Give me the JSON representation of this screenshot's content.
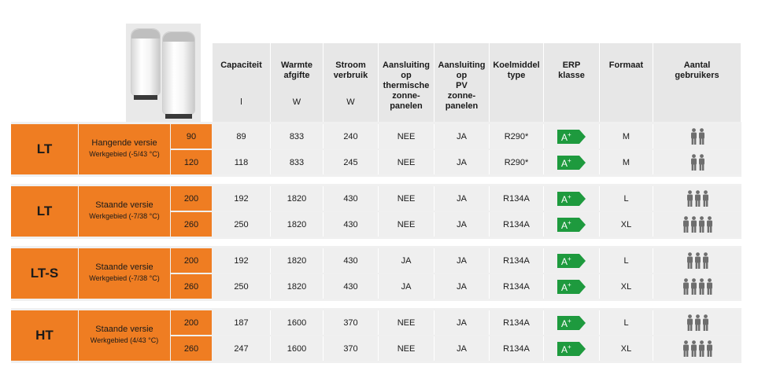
{
  "headers": [
    {
      "label": "Capaciteit",
      "unit": "l"
    },
    {
      "label": "Warmte afgifte",
      "unit": "W"
    },
    {
      "label": "Stroom verbruik",
      "unit": "W"
    },
    {
      "label": "Aansluiting op thermische zonne-panelen",
      "unit": ""
    },
    {
      "label": "Aansluiting op PV zonne-panelen",
      "unit": ""
    },
    {
      "label": "Koelmiddel type",
      "unit": ""
    },
    {
      "label": "ERP klasse",
      "unit": ""
    },
    {
      "label": "Formaat",
      "unit": ""
    },
    {
      "label": "Aantal gebruikers",
      "unit": ""
    }
  ],
  "header_lines": {
    "h0": [
      "Capaciteit"
    ],
    "h1": [
      "Warmte",
      "afgifte"
    ],
    "h2": [
      "Stroom",
      "verbruik"
    ],
    "h3": [
      "Aansluiting",
      "op",
      "thermische",
      "zonne-",
      "panelen"
    ],
    "h4": [
      "Aansluiting",
      "op",
      "PV",
      "zonne-",
      "panelen"
    ],
    "h5": [
      "Koelmiddel",
      "type"
    ],
    "h6": [
      "ERP",
      "klasse"
    ],
    "h7": [
      "Formaat"
    ],
    "h8": [
      "Aantal",
      "gebruikers"
    ]
  },
  "groups": [
    {
      "category": "LT",
      "version": "Hangende versie",
      "range": "Werkgebied (-5/43 °C)",
      "rows": [
        {
          "size": "90",
          "capacity": "89",
          "heat": "833",
          "power": "240",
          "thermal": "NEE",
          "pv": "JA",
          "refrigerant": "R290*",
          "erp": "A+",
          "format": "M",
          "users": 2
        },
        {
          "size": "120",
          "capacity": "118",
          "heat": "833",
          "power": "245",
          "thermal": "NEE",
          "pv": "JA",
          "refrigerant": "R290*",
          "erp": "A+",
          "format": "M",
          "users": 2
        }
      ]
    },
    {
      "category": "LT",
      "version": "Staande versie",
      "range": "Werkgebied (-7/38 °C)",
      "rows": [
        {
          "size": "200",
          "capacity": "192",
          "heat": "1820",
          "power": "430",
          "thermal": "NEE",
          "pv": "JA",
          "refrigerant": "R134A",
          "erp": "A+",
          "format": "L",
          "users": 3
        },
        {
          "size": "260",
          "capacity": "250",
          "heat": "1820",
          "power": "430",
          "thermal": "NEE",
          "pv": "JA",
          "refrigerant": "R134A",
          "erp": "A+",
          "format": "XL",
          "users": 4
        }
      ]
    },
    {
      "category": "LT-S",
      "version": "Staande versie",
      "range": "Werkgebied (-7/38 °C)",
      "rows": [
        {
          "size": "200",
          "capacity": "192",
          "heat": "1820",
          "power": "430",
          "thermal": "JA",
          "pv": "JA",
          "refrigerant": "R134A",
          "erp": "A+",
          "format": "L",
          "users": 3
        },
        {
          "size": "260",
          "capacity": "250",
          "heat": "1820",
          "power": "430",
          "thermal": "JA",
          "pv": "JA",
          "refrigerant": "R134A",
          "erp": "A+",
          "format": "XL",
          "users": 4
        }
      ]
    },
    {
      "category": "HT",
      "version": "Staande versie",
      "range": "Werkgebied (4/43 °C)",
      "rows": [
        {
          "size": "200",
          "capacity": "187",
          "heat": "1600",
          "power": "370",
          "thermal": "NEE",
          "pv": "JA",
          "refrigerant": "R134A",
          "erp": "A+",
          "format": "L",
          "users": 3
        },
        {
          "size": "260",
          "capacity": "247",
          "heat": "1600",
          "power": "370",
          "thermal": "NEE",
          "pv": "JA",
          "refrigerant": "R134A",
          "erp": "A+",
          "format": "XL",
          "users": 4
        }
      ]
    }
  ],
  "colors": {
    "orange": "#ef7d22",
    "erp_green": "#1e9a3e",
    "person_gray": "#6e6e6e"
  },
  "icons": {
    "product": "water-heater-image",
    "erp": "erp-label-icon",
    "users": "person-icon"
  }
}
